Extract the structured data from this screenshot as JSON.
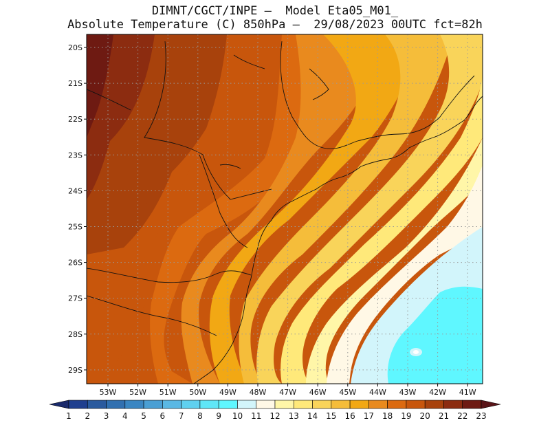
{
  "header": {
    "line1": "DIMNT/CGCT/INPE –  Model Eta05_M01_",
    "line2": "Absolute Temperature (C) 850hPa –  29/08/2023 00UTC fct=82h"
  },
  "map": {
    "lat_labels": [
      "20S",
      "21S",
      "22S",
      "23S",
      "24S",
      "25S",
      "26S",
      "27S",
      "28S",
      "29S"
    ],
    "lon_labels": [
      "53W",
      "52W",
      "51W",
      "50W",
      "49W",
      "48W",
      "47W",
      "46W",
      "45W",
      "44W",
      "43W",
      "42W",
      "41W"
    ],
    "gridlines": "dotted"
  },
  "colorbar": {
    "labels": [
      "1",
      "2",
      "3",
      "4",
      "5",
      "6",
      "7",
      "8",
      "9",
      "10",
      "11",
      "12",
      "13",
      "14",
      "15",
      "16",
      "17",
      "18",
      "19",
      "20",
      "21",
      "22",
      "23"
    ],
    "colors": [
      "#1f3f8f",
      "#2a5a9e",
      "#3170b0",
      "#3a86c2",
      "#4a9fd4",
      "#5ab8e4",
      "#5fd0ef",
      "#5fe6f7",
      "#5ff7ff",
      "#d2f5fb",
      "#fff8e6",
      "#fff6a8",
      "#ffe97a",
      "#f9d45a",
      "#f5bd3a",
      "#f2a814",
      "#e98a1e",
      "#dc6a10",
      "#c8560c",
      "#a8420c",
      "#8c2c10",
      "#6e1a12"
    ],
    "extend_low_color": "#1a2a6c",
    "extend_high_color": "#5a1418"
  }
}
